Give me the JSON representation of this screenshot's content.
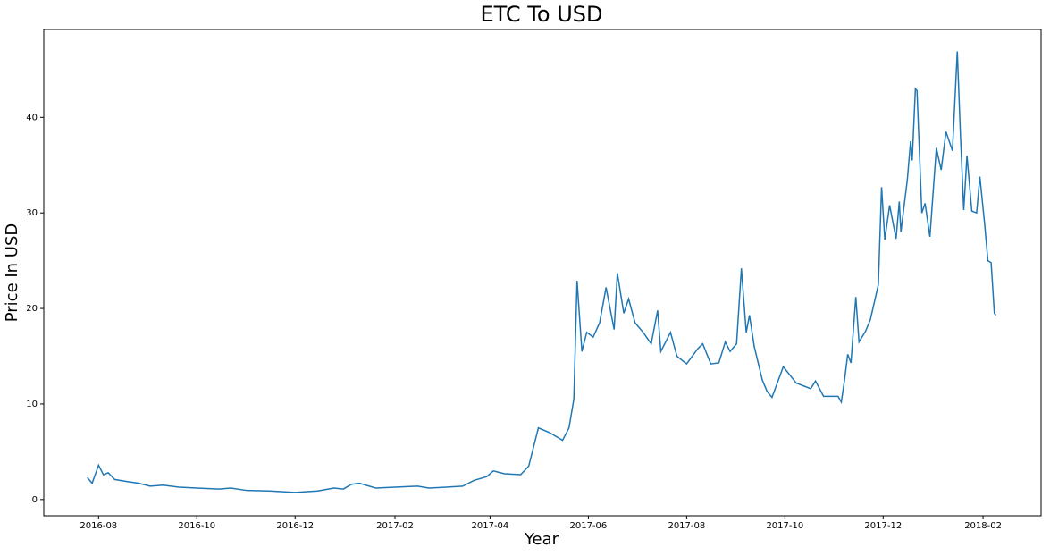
{
  "chart_data": {
    "type": "line",
    "title": "ETC To USD",
    "x_label": "Year",
    "y_label": "Price In USD",
    "series": [
      {
        "name": "ETC",
        "color": "#1f77b4",
        "x": [
          "2016-07-25",
          "2016-07-28",
          "2016-08-01",
          "2016-08-04",
          "2016-08-07",
          "2016-08-11",
          "2016-08-18",
          "2016-08-26",
          "2016-09-02",
          "2016-09-10",
          "2016-09-20",
          "2016-10-01",
          "2016-10-15",
          "2016-10-22",
          "2016-11-01",
          "2016-11-15",
          "2016-12-01",
          "2016-12-15",
          "2016-12-25",
          "2016-12-31",
          "2017-01-05",
          "2017-01-10",
          "2017-01-20",
          "2017-02-01",
          "2017-02-15",
          "2017-02-22",
          "2017-03-05",
          "2017-03-15",
          "2017-03-22",
          "2017-03-30",
          "2017-04-03",
          "2017-04-10",
          "2017-04-20",
          "2017-04-25",
          "2017-05-01",
          "2017-05-08",
          "2017-05-13",
          "2017-05-16",
          "2017-05-20",
          "2017-05-23",
          "2017-05-25",
          "2017-05-28",
          "2017-05-31",
          "2017-06-04",
          "2017-06-08",
          "2017-06-12",
          "2017-06-17",
          "2017-06-19",
          "2017-06-23",
          "2017-06-26",
          "2017-06-30",
          "2017-07-05",
          "2017-07-10",
          "2017-07-14",
          "2017-07-16",
          "2017-07-22",
          "2017-07-26",
          "2017-08-01",
          "2017-08-08",
          "2017-08-11",
          "2017-08-16",
          "2017-08-21",
          "2017-08-25",
          "2017-08-28",
          "2017-09-01",
          "2017-09-04",
          "2017-09-07",
          "2017-09-09",
          "2017-09-12",
          "2017-09-17",
          "2017-09-20",
          "2017-09-23",
          "2017-09-30",
          "2017-10-08",
          "2017-10-17",
          "2017-10-20",
          "2017-10-25",
          "2017-11-03",
          "2017-11-05",
          "2017-11-07",
          "2017-11-09",
          "2017-11-11",
          "2017-11-14",
          "2017-11-16",
          "2017-11-20",
          "2017-11-23",
          "2017-11-28",
          "2017-11-30",
          "2017-12-02",
          "2017-12-05",
          "2017-12-09",
          "2017-12-11",
          "2017-12-12",
          "2017-12-16",
          "2017-12-18",
          "2017-12-19",
          "2017-12-21",
          "2017-12-22",
          "2017-12-25",
          "2017-12-27",
          "2017-12-30",
          "2018-01-03",
          "2018-01-06",
          "2018-01-09",
          "2018-01-13",
          "2018-01-16",
          "2018-01-18",
          "2018-01-20",
          "2018-01-22",
          "2018-01-25",
          "2018-01-28",
          "2018-01-30",
          "2018-02-02",
          "2018-02-04",
          "2018-02-06",
          "2018-02-08",
          "2018-02-09"
        ],
        "values": [
          2.3,
          1.7,
          3.6,
          2.6,
          2.8,
          2.1,
          1.9,
          1.7,
          1.4,
          1.5,
          1.3,
          1.2,
          1.1,
          1.2,
          0.95,
          0.9,
          0.75,
          0.9,
          1.2,
          1.1,
          1.6,
          1.7,
          1.2,
          1.3,
          1.4,
          1.2,
          1.3,
          1.4,
          2.0,
          2.4,
          3.0,
          2.7,
          2.6,
          3.5,
          7.5,
          7.0,
          6.5,
          6.2,
          7.5,
          10.5,
          22.9,
          15.5,
          17.5,
          17.0,
          18.5,
          22.2,
          17.8,
          23.7,
          19.5,
          21.0,
          18.5,
          17.5,
          16.3,
          19.8,
          15.5,
          17.5,
          15.0,
          14.2,
          15.8,
          16.3,
          14.2,
          14.3,
          16.5,
          15.5,
          16.3,
          24.2,
          17.5,
          19.3,
          16.0,
          12.5,
          11.3,
          10.7,
          13.9,
          12.2,
          11.6,
          12.4,
          10.8,
          10.8,
          10.2,
          12.5,
          15.2,
          14.3,
          21.2,
          16.5,
          17.6,
          18.8,
          22.5,
          32.7,
          27.2,
          30.8,
          27.3,
          31.2,
          28.0,
          33.5,
          37.5,
          35.5,
          43.0,
          42.8,
          30.0,
          31.0,
          27.5,
          36.8,
          34.5,
          38.5,
          36.5,
          46.9,
          38.0,
          30.3,
          36.0,
          30.2,
          30.0,
          33.8,
          28.8,
          25.0,
          24.8,
          19.5,
          19.3
        ]
      }
    ],
    "xlim": [
      "2016-06-28",
      "2018-03-09"
    ],
    "xticks": [
      "2016-08",
      "2016-10",
      "2016-12",
      "2017-02",
      "2017-04",
      "2017-06",
      "2017-08",
      "2017-10",
      "2017-12",
      "2018-02"
    ],
    "ylim": [
      -1.7,
      49.2
    ],
    "yticks": [
      0,
      10,
      20,
      30,
      40
    ],
    "grid": false
  }
}
